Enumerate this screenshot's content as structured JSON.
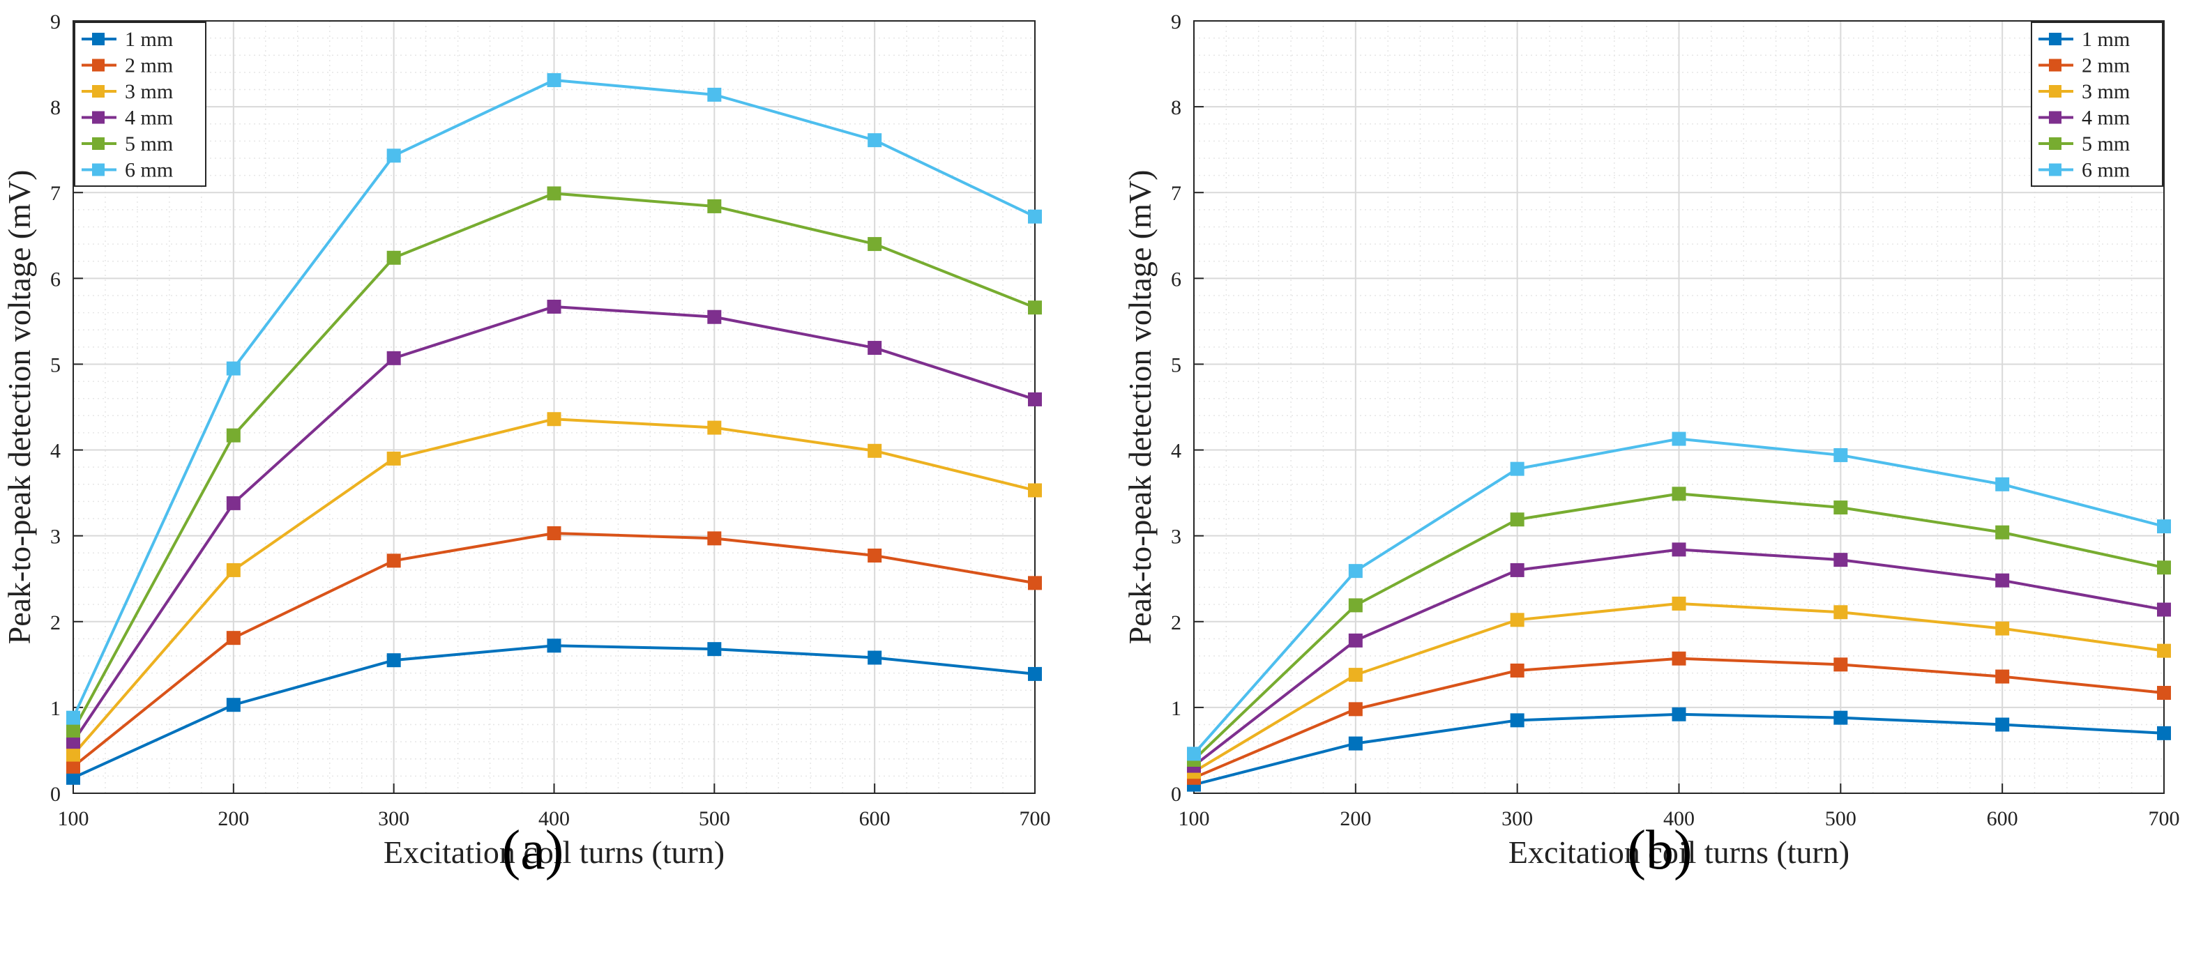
{
  "panels": [
    {
      "label": "(a)",
      "chart_data": {
        "type": "line",
        "xlabel": "Excitation coil turns (turn)",
        "ylabel": "Peak-to-peak detection voltage (mV)",
        "xlim": [
          100,
          700
        ],
        "ylim": [
          0,
          9
        ],
        "x": [
          100,
          200,
          300,
          400,
          500,
          600,
          700
        ],
        "x_ticks": [
          "100",
          "200",
          "300",
          "400",
          "500",
          "600",
          "700"
        ],
        "y_ticks": [
          "0",
          "1",
          "2",
          "3",
          "4",
          "5",
          "6",
          "7",
          "8",
          "9"
        ],
        "grid": true,
        "legend_position": "top-left",
        "series": [
          {
            "name": "1 mm",
            "color": "#0072BD",
            "values": [
              0.18,
              1.03,
              1.55,
              1.72,
              1.68,
              1.58,
              1.39
            ]
          },
          {
            "name": "2 mm",
            "color": "#D95319",
            "values": [
              0.31,
              1.81,
              2.71,
              3.03,
              2.97,
              2.77,
              2.45
            ]
          },
          {
            "name": "3 mm",
            "color": "#EDB120",
            "values": [
              0.45,
              2.6,
              3.9,
              4.36,
              4.26,
              3.99,
              3.53
            ]
          },
          {
            "name": "4 mm",
            "color": "#7E2F8E",
            "values": [
              0.6,
              3.38,
              5.07,
              5.67,
              5.55,
              5.19,
              4.59
            ]
          },
          {
            "name": "5 mm",
            "color": "#77AC30",
            "values": [
              0.73,
              4.17,
              6.24,
              6.99,
              6.84,
              6.4,
              5.66
            ]
          },
          {
            "name": "6 mm",
            "color": "#4DBEEE",
            "values": [
              0.88,
              4.95,
              7.43,
              8.31,
              8.14,
              7.61,
              6.72
            ]
          }
        ]
      }
    },
    {
      "label": "(b)",
      "chart_data": {
        "type": "line",
        "xlabel": "Excitation coil turns (turn)",
        "ylabel": "Peak-to-peak detection voltage (mV)",
        "xlim": [
          100,
          700
        ],
        "ylim": [
          0,
          9
        ],
        "x": [
          100,
          200,
          300,
          400,
          500,
          600,
          700
        ],
        "x_ticks": [
          "100",
          "200",
          "300",
          "400",
          "500",
          "600",
          "700"
        ],
        "y_ticks": [
          "0",
          "1",
          "2",
          "3",
          "4",
          "5",
          "6",
          "7",
          "8",
          "9"
        ],
        "grid": true,
        "legend_position": "top-right",
        "series": [
          {
            "name": "1 mm",
            "color": "#0072BD",
            "values": [
              0.1,
              0.58,
              0.85,
              0.92,
              0.88,
              0.8,
              0.7
            ]
          },
          {
            "name": "2 mm",
            "color": "#D95319",
            "values": [
              0.18,
              0.98,
              1.43,
              1.57,
              1.5,
              1.36,
              1.17
            ]
          },
          {
            "name": "3 mm",
            "color": "#EDB120",
            "values": [
              0.25,
              1.38,
              2.02,
              2.21,
              2.11,
              1.92,
              1.66
            ]
          },
          {
            "name": "4 mm",
            "color": "#7E2F8E",
            "values": [
              0.32,
              1.78,
              2.6,
              2.84,
              2.72,
              2.48,
              2.14
            ]
          },
          {
            "name": "5 mm",
            "color": "#77AC30",
            "values": [
              0.39,
              2.19,
              3.19,
              3.49,
              3.33,
              3.04,
              2.63
            ]
          },
          {
            "name": "6 mm",
            "color": "#4DBEEE",
            "values": [
              0.46,
              2.59,
              3.78,
              4.13,
              3.94,
              3.6,
              3.11
            ]
          }
        ]
      }
    }
  ]
}
